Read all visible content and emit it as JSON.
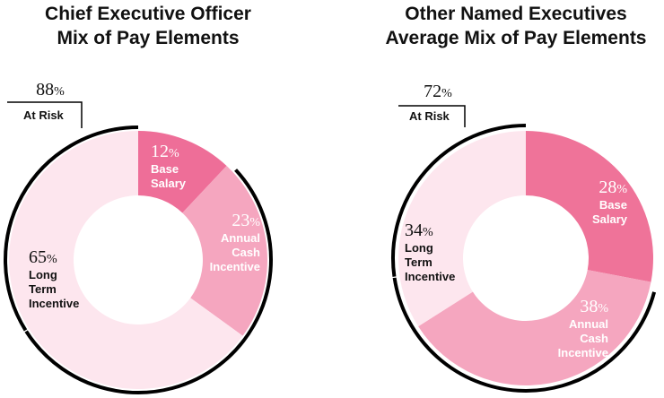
{
  "chart_data": [
    {
      "type": "donut",
      "title": [
        "Chief Executive Officer",
        "Mix of Pay Elements"
      ],
      "at_risk": {
        "value": 88,
        "label": "At Risk"
      },
      "segments": [
        {
          "name": [
            "Base",
            "Salary"
          ],
          "value": 12,
          "color": "#ee6e98",
          "text_color": "#ffffff"
        },
        {
          "name": [
            "Annual",
            "Cash",
            "Incentive"
          ],
          "value": 23,
          "color": "#f5a6bf",
          "text_color": "#ffffff"
        },
        {
          "name": [
            "Long",
            "Term",
            "Incentive"
          ],
          "value": 65,
          "color": "#fde6ee",
          "text_color": "#111111"
        }
      ]
    },
    {
      "type": "donut",
      "title": [
        "Other Named Executives",
        "Average Mix of Pay Elements"
      ],
      "at_risk": {
        "value": 72,
        "label": "At Risk"
      },
      "segments": [
        {
          "name": [
            "Base",
            "Salary"
          ],
          "value": 28,
          "color": "#ef7399",
          "text_color": "#ffffff"
        },
        {
          "name": [
            "Annual",
            "Cash",
            "Incentive"
          ],
          "value": 38,
          "color": "#f5a6bf",
          "text_color": "#ffffff"
        },
        {
          "name": [
            "Long",
            "Term",
            "Incentive"
          ],
          "value": 34,
          "color": "#fde6ee",
          "text_color": "#111111"
        }
      ]
    }
  ],
  "percent_sign": "%"
}
